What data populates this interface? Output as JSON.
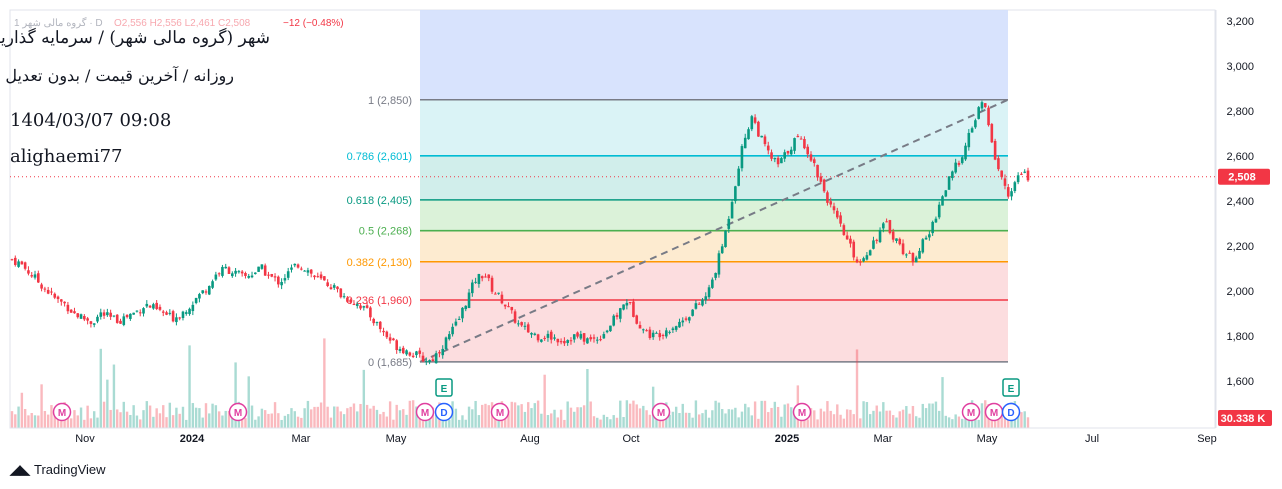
{
  "header": {
    "symbol_line": "شهر (گروه مالی شهر) / سرمایه گذاریها",
    "subtitle": "روزانه / آخرین قیمت / بدون تعدیل",
    "datetime": "1404/03/07 09:08",
    "author": "alighaemi77",
    "ohlc_prefix": "1 گروه مالی شهر · D",
    "ohlc": "O2,556  H2,556  L2,461  C2,508",
    "change": "−12 (−0.48%)"
  },
  "footer": {
    "brand": "TradingView"
  },
  "colors": {
    "up": "#089981",
    "down": "#f23645",
    "price_label": "#f23645",
    "volume_label": "#f23645"
  },
  "chart_data": {
    "type": "candlestick",
    "price_axis": {
      "ticks": [
        1600,
        1800,
        2000,
        2200,
        2400,
        2600,
        2800,
        3000,
        3200
      ],
      "tick_labels": [
        "1,600",
        "1,800",
        "2,000",
        "2,200",
        "2,400",
        "2,600",
        "2,800",
        "3,000",
        "3,200"
      ],
      "range": [
        1500,
        3240
      ]
    },
    "time_axis": {
      "labels": [
        "Nov",
        "2024",
        "Mar",
        "May",
        "Aug",
        "Oct",
        "2025",
        "Mar",
        "May",
        "Jul",
        "Sep"
      ]
    },
    "last_price": {
      "value": 2508,
      "label": "2,508"
    },
    "volume_label": "30.338 K",
    "fibonacci": {
      "levels": [
        {
          "ratio": "1",
          "price": 2850,
          "label": "1 (2,850)",
          "color": "#787b86",
          "fill": "#e0e0e0"
        },
        {
          "ratio": "0.786",
          "price": 2601,
          "label": "0.786 (2,601)",
          "color": "#00bcd4",
          "fill": "#d4f1f4"
        },
        {
          "ratio": "0.618",
          "price": 2405,
          "label": "0.618 (2,405)",
          "color": "#089981",
          "fill": "#c9ebe8"
        },
        {
          "ratio": "0.5",
          "price": 2268,
          "label": "0.5 (2,268)",
          "color": "#4caf50",
          "fill": "#d5f0d2"
        },
        {
          "ratio": "0.382",
          "price": 2130,
          "label": "0.382 (2,130)",
          "color": "#ff9800",
          "fill": "#fde8c8"
        },
        {
          "ratio": "0.236",
          "price": 1960,
          "label": "0.236 (1,960)",
          "color": "#f23645",
          "fill": "#fcd7d9"
        },
        {
          "ratio": "0",
          "price": 1685,
          "label": "0 (1,685)",
          "color": "#787b86",
          "fill": "#fcd7d9"
        }
      ],
      "extension_fill": "#d4e0fd"
    },
    "trend_line": {
      "from_price": 1685,
      "to_price": 2850
    },
    "price_path": [
      2140,
      2120,
      2080,
      2040,
      2000,
      1960,
      1940,
      1900,
      1880,
      1860,
      1900,
      1880,
      1870,
      1890,
      1910,
      1940,
      1920,
      1900,
      1880,
      1900,
      1940,
      1980,
      2020,
      2080,
      2100,
      2080,
      2060,
      2080,
      2100,
      2060,
      2040,
      2080,
      2120,
      2100,
      2060,
      2040,
      2020,
      1980,
      1960,
      1940,
      1900,
      1850,
      1800,
      1760,
      1740,
      1720,
      1700,
      1690,
      1740,
      1800,
      1860,
      1960,
      2050,
      2080,
      2000,
      1960,
      1900,
      1840,
      1820,
      1800,
      1800,
      1790,
      1780,
      1800,
      1790,
      1780,
      1800,
      1840,
      1900,
      1960,
      1880,
      1820,
      1800,
      1820,
      1840,
      1860,
      1900,
      1940,
      1980,
      2100,
      2250,
      2450,
      2650,
      2780,
      2680,
      2600,
      2560,
      2620,
      2680,
      2650,
      2560,
      2460,
      2360,
      2280,
      2200,
      2120,
      2180,
      2240,
      2300,
      2240,
      2180,
      2140,
      2200,
      2260,
      2380,
      2480,
      2560,
      2640,
      2760,
      2850,
      2640,
      2500,
      2420,
      2520,
      2508
    ],
    "markers": [
      {
        "text": "M",
        "kind": "dividend"
      },
      {
        "text": "M",
        "kind": "dividend"
      },
      {
        "text": "M",
        "kind": "dividend"
      },
      {
        "text": "D",
        "kind": "split"
      },
      {
        "text": "M",
        "kind": "dividend"
      },
      {
        "text": "M",
        "kind": "dividend"
      },
      {
        "text": "M",
        "kind": "dividend"
      },
      {
        "text": "M",
        "kind": "dividend"
      },
      {
        "text": "M",
        "kind": "dividend"
      },
      {
        "text": "D",
        "kind": "split"
      }
    ],
    "earnings_markers": [
      {
        "text": "E"
      },
      {
        "text": "E"
      }
    ]
  }
}
